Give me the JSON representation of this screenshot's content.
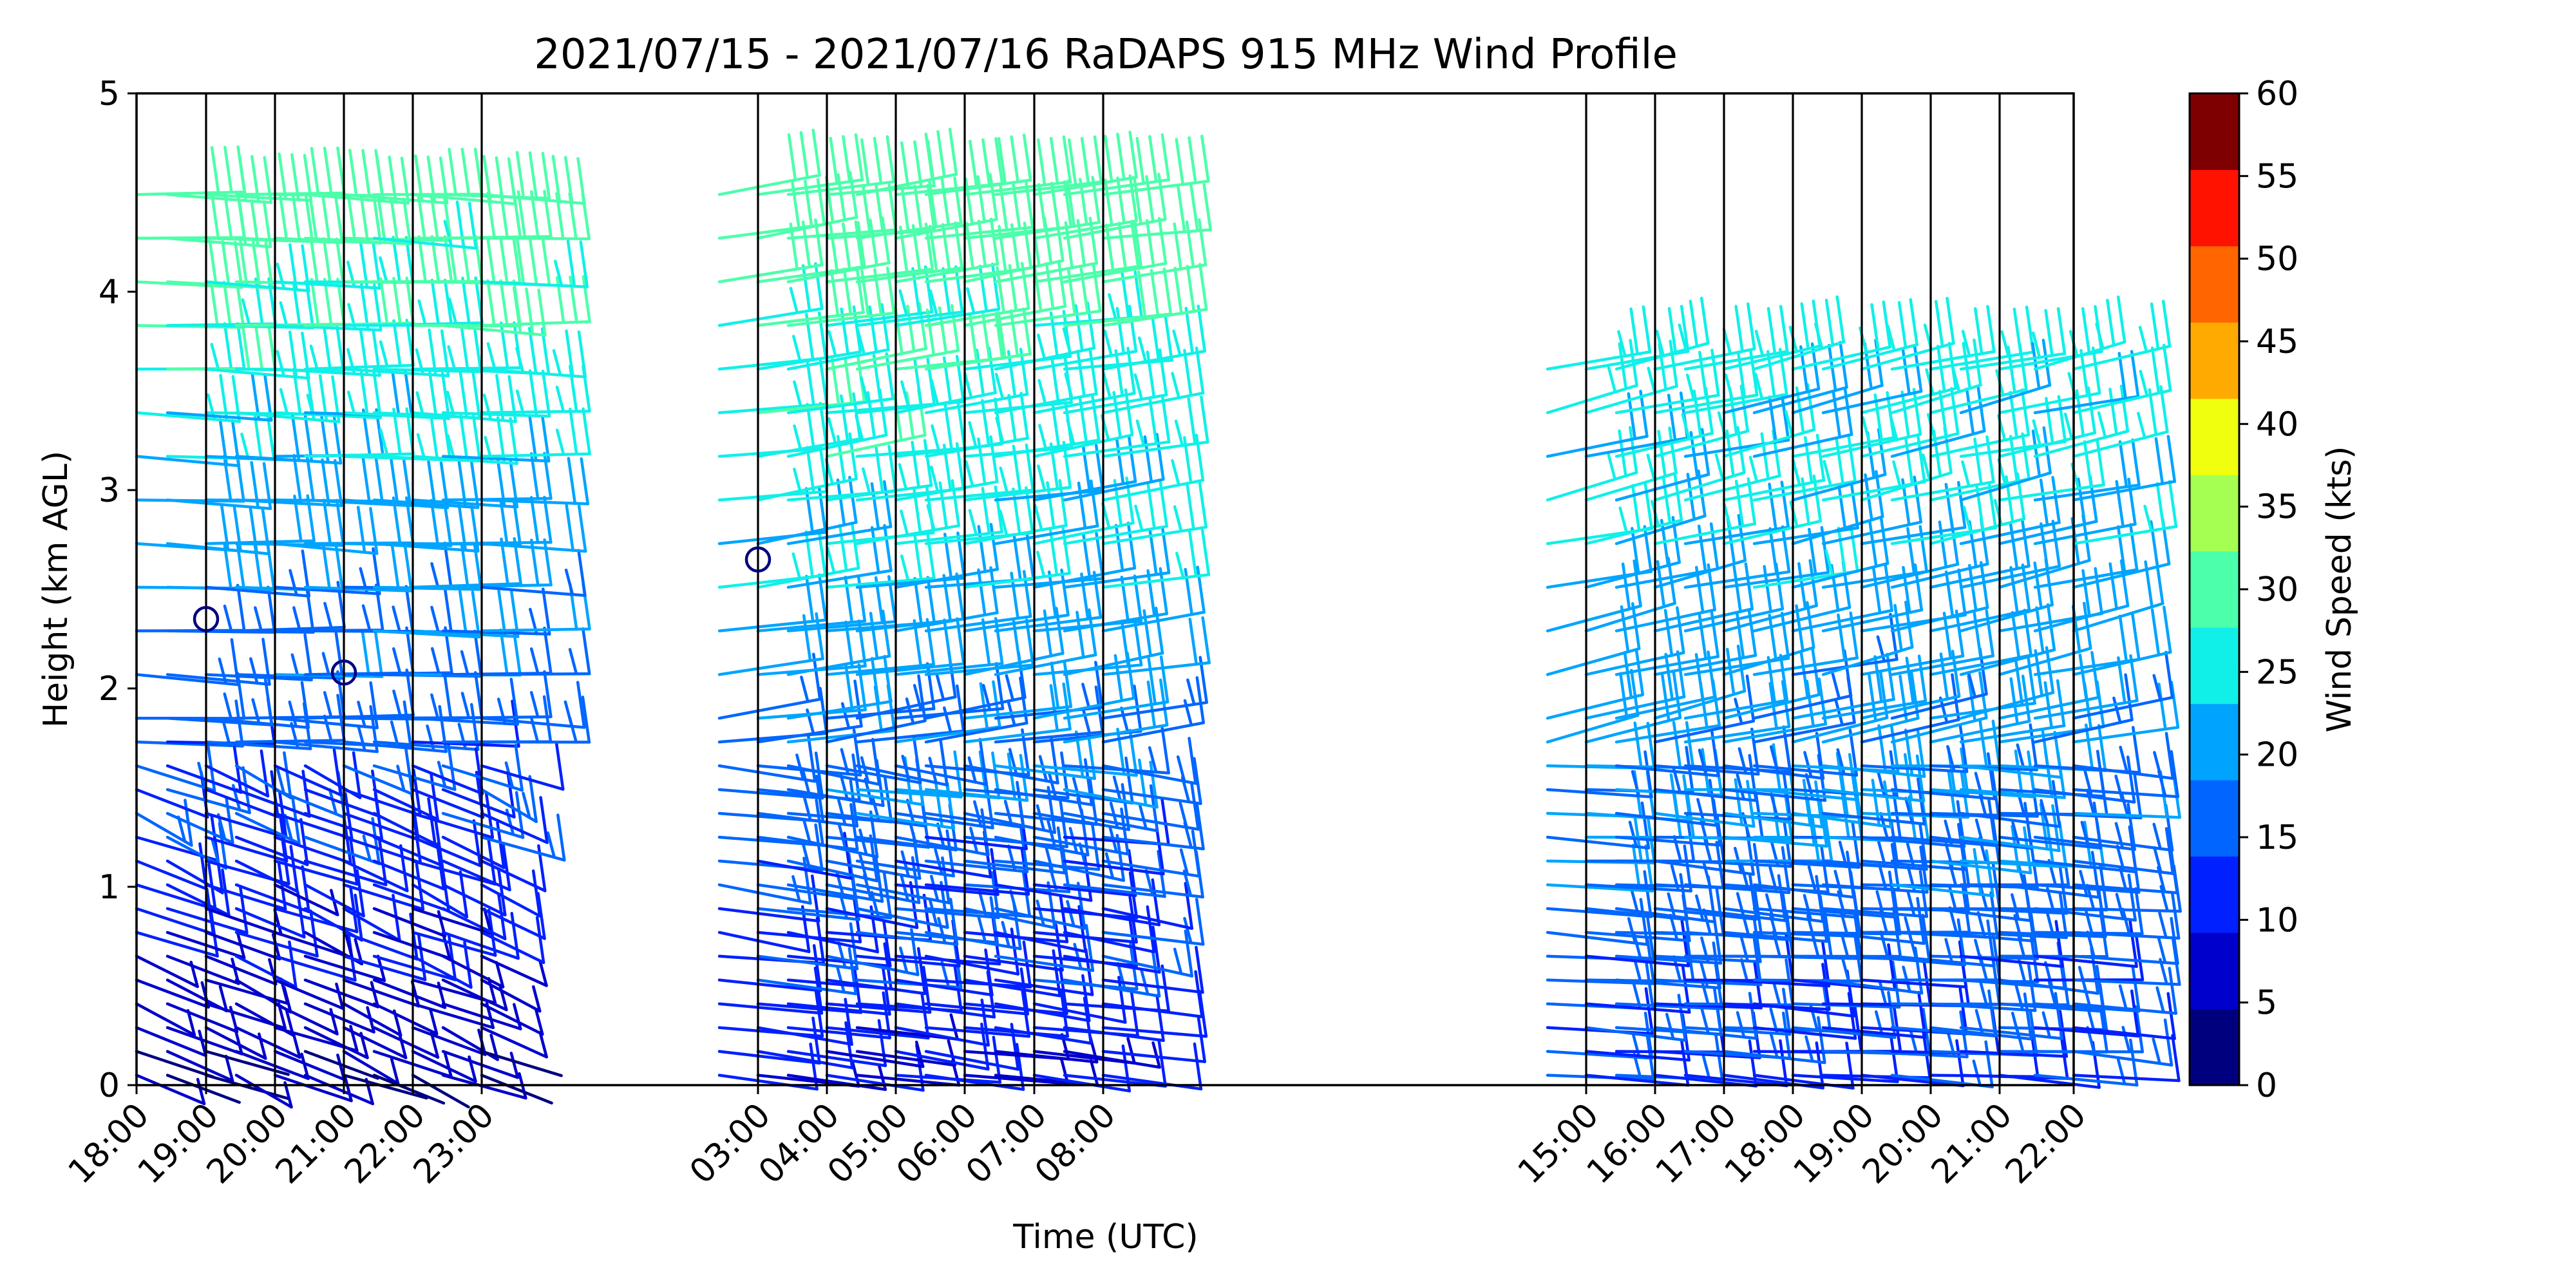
{
  "chart_data": {
    "type": "wind_barb_profile",
    "title": "2021/07/15 - 2021/07/16 RaDAPS 915 MHz Wind Profile",
    "xlabel": "Time (UTC)",
    "ylabel": "Height (km AGL)",
    "ylim": [
      0,
      5
    ],
    "yticks": [
      "0",
      "1",
      "2",
      "3",
      "4",
      "5"
    ],
    "xticks": [
      "18:00",
      "19:00",
      "20:00",
      "21:00",
      "22:00",
      "23:00",
      "03:00",
      "04:00",
      "05:00",
      "06:00",
      "07:00",
      "08:00",
      "15:00",
      "16:00",
      "17:00",
      "18:00",
      "19:00",
      "20:00",
      "21:00",
      "22:00"
    ],
    "grid": "vertical lines at each hour with data",
    "colorbar": {
      "label": "Wind Speed (kts)",
      "ticks": [
        "0",
        "5",
        "10",
        "15",
        "20",
        "25",
        "30",
        "35",
        "40",
        "45",
        "50",
        "55",
        "60"
      ],
      "colors": [
        "#00007f",
        "#0000cc",
        "#0020ff",
        "#0066ff",
        "#00a4ff",
        "#10f0e8",
        "#4cffaa",
        "#a4ff52",
        "#f0ff0e",
        "#ffaa00",
        "#ff6600",
        "#ff1200",
        "#7f0000"
      ]
    },
    "calm_markers": [
      {
        "time": "19:00",
        "height_km": 2.35
      },
      {
        "time": "21:00",
        "height_km": 2.08
      },
      {
        "time": "03:00",
        "height_km": 2.65
      }
    ]
  }
}
